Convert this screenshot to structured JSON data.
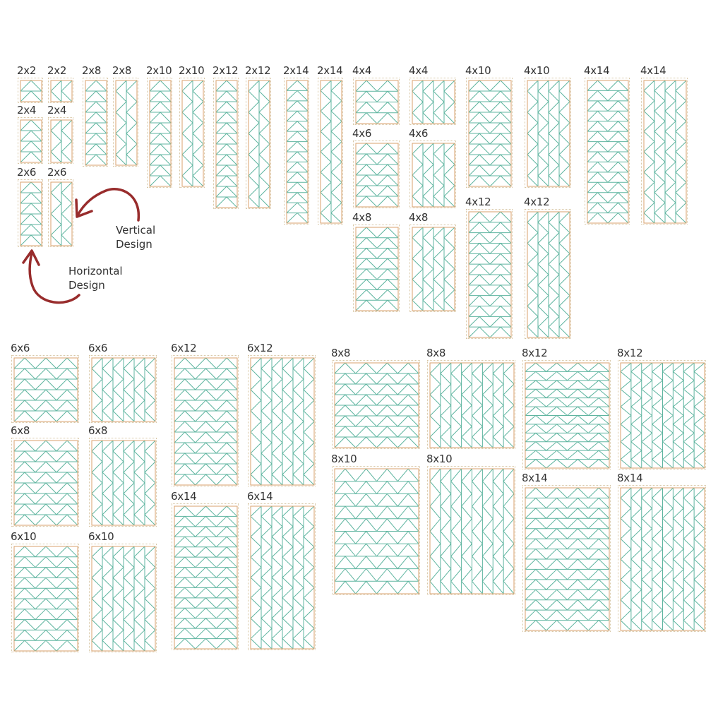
{
  "colors": {
    "stitch": "#5fb5a0",
    "binding": "#d9a26e",
    "outer": "#d8c7a6",
    "arrow": "#982c2c"
  },
  "annotations": {
    "vertical": [
      "Vertical",
      "Design"
    ],
    "horizontal": [
      "Horizontal",
      "Design"
    ]
  },
  "tiles": [
    {
      "label": "2x2",
      "w": 2,
      "h": 2,
      "design": "horizontal"
    },
    {
      "label": "2x2",
      "w": 2,
      "h": 2,
      "design": "vertical"
    },
    {
      "label": "2x4",
      "w": 2,
      "h": 4,
      "design": "horizontal"
    },
    {
      "label": "2x4",
      "w": 2,
      "h": 4,
      "design": "vertical"
    },
    {
      "label": "2x6",
      "w": 2,
      "h": 6,
      "design": "horizontal"
    },
    {
      "label": "2x6",
      "w": 2,
      "h": 6,
      "design": "vertical"
    },
    {
      "label": "2x8",
      "w": 2,
      "h": 8,
      "design": "horizontal"
    },
    {
      "label": "2x8",
      "w": 2,
      "h": 8,
      "design": "vertical"
    },
    {
      "label": "2x10",
      "w": 2,
      "h": 10,
      "design": "horizontal"
    },
    {
      "label": "2x10",
      "w": 2,
      "h": 10,
      "design": "vertical"
    },
    {
      "label": "2x12",
      "w": 2,
      "h": 12,
      "design": "horizontal"
    },
    {
      "label": "2x12",
      "w": 2,
      "h": 12,
      "design": "vertical"
    },
    {
      "label": "2x14",
      "w": 2,
      "h": 14,
      "design": "horizontal"
    },
    {
      "label": "2x14",
      "w": 2,
      "h": 14,
      "design": "vertical"
    },
    {
      "label": "4x4",
      "w": 4,
      "h": 4,
      "design": "horizontal"
    },
    {
      "label": "4x4",
      "w": 4,
      "h": 4,
      "design": "vertical"
    },
    {
      "label": "4x6",
      "w": 4,
      "h": 6,
      "design": "horizontal"
    },
    {
      "label": "4x6",
      "w": 4,
      "h": 6,
      "design": "vertical"
    },
    {
      "label": "4x8",
      "w": 4,
      "h": 8,
      "design": "horizontal"
    },
    {
      "label": "4x8",
      "w": 4,
      "h": 8,
      "design": "vertical"
    },
    {
      "label": "4x10",
      "w": 4,
      "h": 10,
      "design": "horizontal"
    },
    {
      "label": "4x10",
      "w": 4,
      "h": 10,
      "design": "vertical"
    },
    {
      "label": "4x12",
      "w": 4,
      "h": 12,
      "design": "horizontal"
    },
    {
      "label": "4x12",
      "w": 4,
      "h": 12,
      "design": "vertical"
    },
    {
      "label": "4x14",
      "w": 4,
      "h": 14,
      "design": "horizontal"
    },
    {
      "label": "4x14",
      "w": 4,
      "h": 14,
      "design": "vertical"
    },
    {
      "label": "6x6",
      "w": 6,
      "h": 6,
      "design": "horizontal"
    },
    {
      "label": "6x6",
      "w": 6,
      "h": 6,
      "design": "vertical"
    },
    {
      "label": "6x8",
      "w": 6,
      "h": 8,
      "design": "horizontal"
    },
    {
      "label": "6x8",
      "w": 6,
      "h": 8,
      "design": "vertical"
    },
    {
      "label": "6x10",
      "w": 6,
      "h": 10,
      "design": "horizontal"
    },
    {
      "label": "6x10",
      "w": 6,
      "h": 10,
      "design": "vertical"
    },
    {
      "label": "6x12",
      "w": 6,
      "h": 12,
      "design": "horizontal"
    },
    {
      "label": "6x12",
      "w": 6,
      "h": 12,
      "design": "vertical"
    },
    {
      "label": "6x14",
      "w": 6,
      "h": 14,
      "design": "horizontal"
    },
    {
      "label": "6x14",
      "w": 6,
      "h": 14,
      "design": "vertical"
    },
    {
      "label": "8x8",
      "w": 8,
      "h": 8,
      "design": "horizontal"
    },
    {
      "label": "8x8",
      "w": 8,
      "h": 8,
      "design": "vertical"
    },
    {
      "label": "8x10",
      "w": 8,
      "h": 10,
      "design": "horizontal"
    },
    {
      "label": "8x10",
      "w": 8,
      "h": 10,
      "design": "vertical"
    },
    {
      "label": "8x12",
      "w": 8,
      "h": 12,
      "design": "horizontal"
    },
    {
      "label": "8x12",
      "w": 8,
      "h": 12,
      "design": "vertical"
    },
    {
      "label": "8x14",
      "w": 8,
      "h": 14,
      "design": "horizontal"
    },
    {
      "label": "8x14",
      "w": 8,
      "h": 14,
      "design": "vertical"
    }
  ]
}
